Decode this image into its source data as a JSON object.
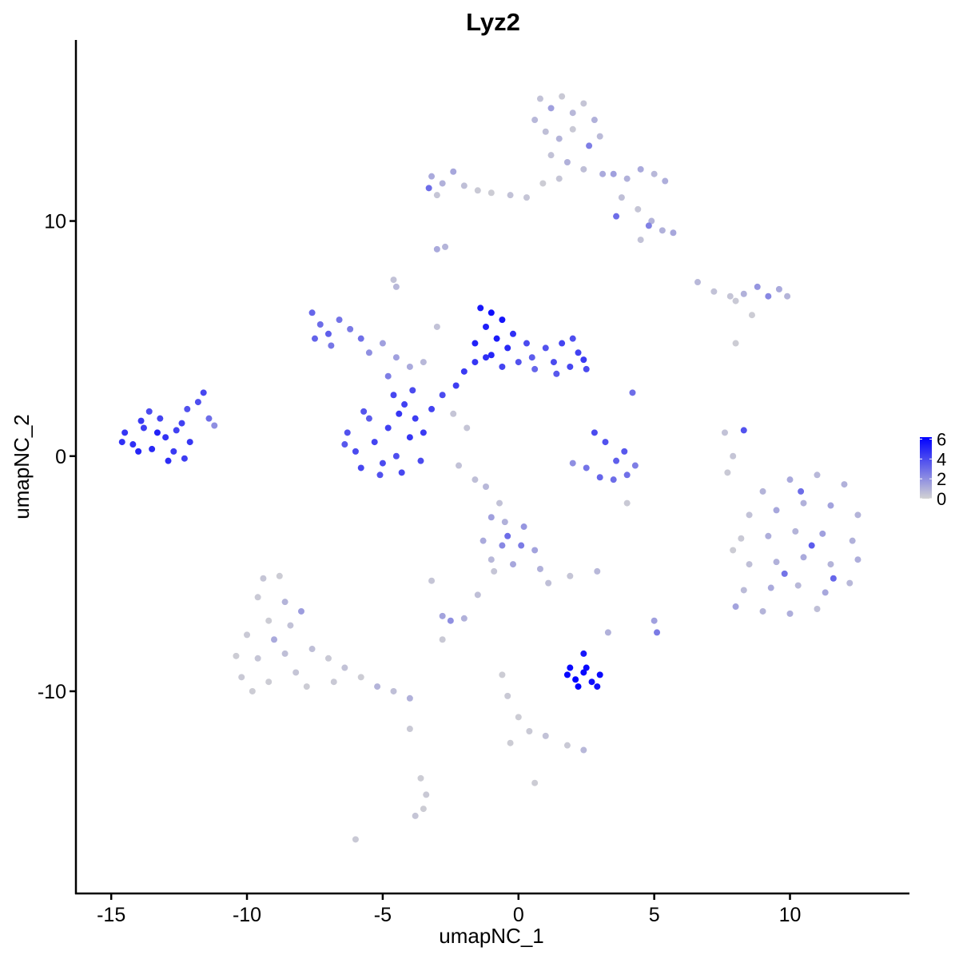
{
  "chart_data": {
    "type": "scatter",
    "title": "Lyz2",
    "xlabel": "umapNC_1",
    "ylabel": "umapNC_2",
    "xlim": [
      -16.3,
      14.4
    ],
    "ylim": [
      -18.6,
      17.7
    ],
    "x_ticks": [
      -15,
      -10,
      -5,
      0,
      5,
      10
    ],
    "y_ticks": [
      -10,
      0,
      10
    ],
    "grid": false,
    "legend": {
      "position": "right",
      "type": "colorbar",
      "ticks": [
        0,
        2,
        4,
        6
      ],
      "range": [
        0,
        6.2
      ],
      "low_color": "#d3d3d3",
      "high_color": "#0000ff"
    },
    "point_format": [
      "umapNC_1",
      "umapNC_2",
      "expression"
    ],
    "points": [
      [
        -14.5,
        1.0,
        4.6
      ],
      [
        -14.2,
        0.5,
        4.8
      ],
      [
        -13.8,
        1.2,
        4.4
      ],
      [
        -13.5,
        0.3,
        5.0
      ],
      [
        -13.2,
        1.6,
        4.2
      ],
      [
        -13.0,
        0.8,
        4.7
      ],
      [
        -12.7,
        0.2,
        4.5
      ],
      [
        -12.4,
        1.4,
        4.3
      ],
      [
        -12.1,
        0.6,
        4.6
      ],
      [
        -11.8,
        2.3,
        3.9
      ],
      [
        -11.6,
        2.7,
        4.1
      ],
      [
        -12.2,
        2.0,
        3.8
      ],
      [
        -13.6,
        1.9,
        4.0
      ],
      [
        -14.0,
        0.2,
        5.1
      ],
      [
        -12.9,
        -0.2,
        4.9
      ],
      [
        -12.3,
        -0.1,
        4.4
      ],
      [
        -11.2,
        1.3,
        2.0
      ],
      [
        -14.6,
        0.6,
        4.8
      ],
      [
        -13.3,
        1.0,
        5.2
      ],
      [
        -12.6,
        1.1,
        4.3
      ],
      [
        -11.4,
        1.6,
        3.0
      ],
      [
        -13.9,
        1.5,
        4.5
      ],
      [
        -6.3,
        1.0,
        3.8
      ],
      [
        -6.0,
        0.2,
        4.0
      ],
      [
        -5.8,
        -0.5,
        4.1
      ],
      [
        -5.5,
        1.6,
        3.5
      ],
      [
        -5.3,
        0.6,
        4.2
      ],
      [
        -5.0,
        -0.3,
        4.0
      ],
      [
        -4.8,
        1.2,
        4.3
      ],
      [
        -4.5,
        0.0,
        3.9
      ],
      [
        -4.3,
        -0.7,
        4.1
      ],
      [
        -4.0,
        0.8,
        4.6
      ],
      [
        -3.8,
        1.6,
        4.4
      ],
      [
        -3.6,
        -0.2,
        4.0
      ],
      [
        -3.5,
        1.0,
        4.5
      ],
      [
        -4.2,
        2.2,
        4.3
      ],
      [
        -4.6,
        2.6,
        4.1
      ],
      [
        -5.7,
        1.9,
        3.7
      ],
      [
        -6.4,
        0.5,
        3.6
      ],
      [
        -5.1,
        -0.8,
        3.8
      ],
      [
        -3.9,
        2.8,
        4.0
      ],
      [
        -4.4,
        1.8,
        4.6
      ],
      [
        -3.2,
        2.0,
        4.2
      ],
      [
        -2.8,
        2.6,
        4.0
      ],
      [
        -2.3,
        3.0,
        4.4
      ],
      [
        -2.0,
        3.6,
        4.5
      ],
      [
        -1.6,
        4.0,
        4.6
      ],
      [
        -1.2,
        4.2,
        4.8
      ],
      [
        -0.6,
        3.8,
        4.2
      ],
      [
        0.0,
        4.0,
        3.8
      ],
      [
        0.5,
        4.2,
        3.5
      ],
      [
        -4.5,
        4.2,
        1.5
      ],
      [
        -4.0,
        3.8,
        1.2
      ],
      [
        -3.5,
        4.0,
        0.8
      ],
      [
        -5.0,
        4.8,
        1.5
      ],
      [
        -4.8,
        3.4,
        2.5
      ],
      [
        -3.0,
        5.5,
        0.5
      ],
      [
        -1.4,
        6.3,
        5.5
      ],
      [
        -1.0,
        6.1,
        5.8
      ],
      [
        -0.6,
        5.8,
        5.6
      ],
      [
        -1.2,
        5.5,
        5.3
      ],
      [
        -0.8,
        5.0,
        5.4
      ],
      [
        -0.4,
        4.6,
        5.0
      ],
      [
        -1.6,
        4.8,
        5.2
      ],
      [
        -1.0,
        4.3,
        5.1
      ],
      [
        -0.2,
        5.2,
        4.8
      ],
      [
        0.3,
        4.8,
        4.0
      ],
      [
        1.0,
        4.6,
        3.8
      ],
      [
        1.3,
        4.0,
        4.0
      ],
      [
        1.6,
        4.8,
        4.2
      ],
      [
        1.9,
        3.8,
        4.1
      ],
      [
        2.2,
        4.4,
        4.3
      ],
      [
        2.5,
        3.7,
        4.0
      ],
      [
        1.4,
        3.5,
        3.6
      ],
      [
        2.0,
        5.0,
        3.9
      ],
      [
        2.4,
        4.1,
        4.5
      ],
      [
        0.6,
        3.7,
        3.2
      ],
      [
        -7.6,
        6.1,
        3.2
      ],
      [
        -7.3,
        5.6,
        3.0
      ],
      [
        -7.0,
        5.2,
        3.4
      ],
      [
        -6.6,
        5.8,
        2.8
      ],
      [
        -6.2,
        5.4,
        2.6
      ],
      [
        -5.8,
        5.0,
        2.9
      ],
      [
        -7.5,
        5.0,
        3.3
      ],
      [
        -6.9,
        4.7,
        2.7
      ],
      [
        -5.5,
        4.4,
        2.0
      ],
      [
        2.8,
        1.0,
        4.0
      ],
      [
        3.2,
        0.6,
        3.8
      ],
      [
        2.0,
        -0.3,
        2.0
      ],
      [
        2.5,
        -0.5,
        2.8
      ],
      [
        3.0,
        -0.9,
        3.2
      ],
      [
        3.5,
        -1.0,
        3.0
      ],
      [
        4.0,
        -0.8,
        2.9
      ],
      [
        4.3,
        -0.4,
        2.5
      ],
      [
        3.6,
        -0.2,
        3.4
      ],
      [
        3.9,
        0.2,
        3.6
      ],
      [
        0.8,
        15.2,
        0.5
      ],
      [
        1.2,
        14.8,
        1.5
      ],
      [
        1.6,
        15.3,
        0.3
      ],
      [
        2.0,
        14.6,
        0.8
      ],
      [
        2.4,
        15.0,
        0.4
      ],
      [
        2.8,
        14.3,
        1.0
      ],
      [
        1.0,
        13.8,
        0.6
      ],
      [
        1.5,
        13.5,
        0.9
      ],
      [
        2.0,
        13.9,
        0.3
      ],
      [
        2.6,
        13.2,
        2.5
      ],
      [
        3.0,
        13.6,
        0.7
      ],
      [
        1.2,
        12.8,
        0.5
      ],
      [
        1.8,
        12.5,
        1.0
      ],
      [
        2.4,
        12.2,
        0.6
      ],
      [
        3.1,
        12.0,
        1.2
      ],
      [
        0.9,
        11.6,
        0.2
      ],
      [
        1.5,
        11.8,
        0.4
      ],
      [
        0.6,
        14.3,
        0.8
      ],
      [
        3.5,
        12.0,
        1.5
      ],
      [
        4.0,
        11.8,
        1.0
      ],
      [
        4.5,
        12.2,
        1.2
      ],
      [
        5.0,
        12.0,
        0.8
      ],
      [
        5.4,
        11.7,
        1.1
      ],
      [
        3.8,
        11.0,
        0.6
      ],
      [
        4.4,
        10.5,
        0.4
      ],
      [
        4.9,
        10.0,
        0.9
      ],
      [
        5.3,
        9.6,
        1.0
      ],
      [
        5.7,
        9.5,
        1.3
      ],
      [
        4.5,
        9.2,
        0.5
      ],
      [
        3.6,
        10.2,
        3.0
      ],
      [
        4.8,
        9.8,
        2.4
      ],
      [
        -3.2,
        11.9,
        1.2
      ],
      [
        -2.8,
        11.6,
        1.0
      ],
      [
        -2.4,
        12.1,
        1.3
      ],
      [
        -2.0,
        11.5,
        0.6
      ],
      [
        -1.5,
        11.3,
        0.3
      ],
      [
        -1.0,
        11.2,
        0.2
      ],
      [
        -0.3,
        11.1,
        0.5
      ],
      [
        0.3,
        11.0,
        0.4
      ],
      [
        -3.0,
        11.1,
        0.4
      ],
      [
        -3.3,
        11.4,
        3.0
      ],
      [
        6.6,
        7.4,
        0.8
      ],
      [
        7.2,
        7.0,
        0.5
      ],
      [
        7.8,
        6.8,
        0.4
      ],
      [
        8.3,
        6.9,
        1.0
      ],
      [
        8.8,
        7.2,
        1.8
      ],
      [
        9.2,
        6.8,
        2.2
      ],
      [
        9.6,
        7.1,
        1.2
      ],
      [
        9.9,
        6.8,
        0.9
      ],
      [
        8.0,
        6.6,
        0.3
      ],
      [
        8.6,
        6.0,
        0.2
      ],
      [
        9.0,
        -1.5,
        0.9
      ],
      [
        10.0,
        -1.0,
        1.2
      ],
      [
        11.0,
        -0.8,
        0.8
      ],
      [
        12.0,
        -1.2,
        1.0
      ],
      [
        8.5,
        -2.5,
        0.5
      ],
      [
        9.5,
        -2.3,
        1.3
      ],
      [
        10.5,
        -2.0,
        1.0
      ],
      [
        11.5,
        -2.1,
        1.4
      ],
      [
        12.5,
        -2.5,
        0.9
      ],
      [
        8.2,
        -3.5,
        0.3
      ],
      [
        9.2,
        -3.4,
        1.1
      ],
      [
        10.2,
        -3.2,
        0.9
      ],
      [
        11.2,
        -3.3,
        1.5
      ],
      [
        12.3,
        -3.6,
        1.0
      ],
      [
        8.5,
        -4.6,
        0.6
      ],
      [
        9.5,
        -4.5,
        1.0
      ],
      [
        10.5,
        -4.3,
        1.2
      ],
      [
        11.5,
        -4.6,
        0.9
      ],
      [
        12.5,
        -4.4,
        1.1
      ],
      [
        8.3,
        -5.7,
        0.7
      ],
      [
        9.3,
        -5.6,
        1.2
      ],
      [
        10.3,
        -5.5,
        0.8
      ],
      [
        11.3,
        -5.8,
        1.3
      ],
      [
        12.2,
        -5.4,
        0.8
      ],
      [
        9.0,
        -6.6,
        0.9
      ],
      [
        10.0,
        -6.7,
        1.1
      ],
      [
        11.0,
        -6.5,
        0.6
      ],
      [
        8.0,
        -6.4,
        1.4
      ],
      [
        7.9,
        -4.0,
        0.2
      ],
      [
        10.8,
        -3.8,
        3.5
      ],
      [
        11.6,
        -5.2,
        3.2
      ],
      [
        10.4,
        -1.5,
        3.0
      ],
      [
        9.8,
        -5.0,
        2.8
      ],
      [
        -9.4,
        -5.2,
        0.4
      ],
      [
        -8.8,
        -5.1,
        0.2
      ],
      [
        -9.6,
        -6.0,
        0.3
      ],
      [
        -8.6,
        -6.2,
        0.9
      ],
      [
        -9.2,
        -7.0,
        0.2
      ],
      [
        -8.4,
        -7.2,
        0.5
      ],
      [
        -10.0,
        -7.6,
        0.3
      ],
      [
        -9.0,
        -7.8,
        1.2
      ],
      [
        -10.4,
        -8.5,
        0.2
      ],
      [
        -9.6,
        -8.6,
        0.4
      ],
      [
        -8.6,
        -8.4,
        0.6
      ],
      [
        -10.2,
        -9.4,
        0.3
      ],
      [
        -9.2,
        -9.6,
        0.2
      ],
      [
        -8.2,
        -9.2,
        0.4
      ],
      [
        -7.6,
        -8.2,
        0.6
      ],
      [
        -7.0,
        -8.6,
        0.3
      ],
      [
        -6.4,
        -9.0,
        0.5
      ],
      [
        -5.8,
        -9.4,
        0.2
      ],
      [
        -5.2,
        -9.8,
        0.9
      ],
      [
        -4.6,
        -10.0,
        0.6
      ],
      [
        -4.0,
        -10.3,
        1.0
      ],
      [
        -7.8,
        -9.8,
        0.2
      ],
      [
        -6.8,
        -9.6,
        0.3
      ],
      [
        -8.0,
        -6.6,
        1.6
      ],
      [
        -9.8,
        -10.0,
        0.2
      ],
      [
        -1.0,
        -2.6,
        1.5
      ],
      [
        -0.5,
        -2.8,
        1.0
      ],
      [
        0.2,
        -3.0,
        1.8
      ],
      [
        -1.3,
        -3.6,
        1.2
      ],
      [
        -0.6,
        -3.8,
        2.2
      ],
      [
        0.1,
        -3.8,
        2.6
      ],
      [
        0.6,
        -4.0,
        1.4
      ],
      [
        -1.0,
        -4.4,
        0.8
      ],
      [
        -0.2,
        -4.6,
        1.3
      ],
      [
        0.8,
        -4.8,
        1.0
      ],
      [
        1.1,
        -5.4,
        0.6
      ],
      [
        -0.4,
        -3.4,
        3.0
      ],
      [
        1.8,
        -9.3,
        6.0
      ],
      [
        2.1,
        -9.5,
        6.2
      ],
      [
        2.4,
        -9.2,
        6.0
      ],
      [
        2.7,
        -9.6,
        5.8
      ],
      [
        3.0,
        -9.3,
        5.9
      ],
      [
        2.2,
        -9.8,
        6.1
      ],
      [
        2.5,
        -9.0,
        6.0
      ],
      [
        2.4,
        -8.4,
        5.5
      ],
      [
        1.9,
        -9.0,
        5.9
      ],
      [
        2.9,
        -9.8,
        5.7
      ],
      [
        -3.6,
        -13.7,
        0.2
      ],
      [
        -3.4,
        -14.4,
        0.3
      ],
      [
        -3.5,
        -15.0,
        0.2
      ],
      [
        -3.8,
        -15.3,
        0.4
      ],
      [
        -6.0,
        -16.3,
        0.3
      ],
      [
        -2.8,
        -6.8,
        1.4
      ],
      [
        -2.5,
        -7.0,
        2.0
      ],
      [
        -2.0,
        -6.9,
        1.0
      ],
      [
        -1.5,
        -5.9,
        0.6
      ],
      [
        -0.9,
        -4.9,
        0.4
      ],
      [
        -0.6,
        -9.3,
        0.2
      ],
      [
        -0.4,
        -10.2,
        0.3
      ],
      [
        0.0,
        -11.1,
        0.2
      ],
      [
        0.4,
        -11.7,
        0.3
      ],
      [
        1.0,
        -11.9,
        0.5
      ],
      [
        1.8,
        -12.3,
        0.3
      ],
      [
        2.4,
        -12.5,
        0.8
      ],
      [
        -0.3,
        -12.2,
        0.2
      ],
      [
        0.6,
        -13.9,
        0.2
      ],
      [
        -4.0,
        -11.6,
        0.3
      ],
      [
        -3.2,
        -5.3,
        0.4
      ],
      [
        -2.8,
        -7.8,
        0.3
      ],
      [
        7.6,
        1.0,
        0.5
      ],
      [
        8.3,
        1.1,
        3.8
      ],
      [
        7.9,
        0.0,
        0.4
      ],
      [
        7.7,
        -0.7,
        0.3
      ],
      [
        -3.0,
        8.8,
        1.2
      ],
      [
        -2.7,
        8.9,
        0.9
      ],
      [
        -4.6,
        7.5,
        0.5
      ],
      [
        -4.5,
        7.2,
        0.8
      ],
      [
        2.9,
        -4.9,
        0.8
      ],
      [
        5.0,
        -7.0,
        1.5
      ],
      [
        5.1,
        -7.5,
        2.6
      ],
      [
        3.3,
        -7.5,
        1.0
      ],
      [
        1.9,
        -5.1,
        0.4
      ],
      [
        4.0,
        -2.0,
        0.3
      ],
      [
        -1.2,
        -1.3,
        0.8
      ],
      [
        -1.6,
        -1.0,
        0.6
      ],
      [
        -2.2,
        -0.4,
        0.5
      ],
      [
        -0.7,
        -2.0,
        0.5
      ],
      [
        4.2,
        2.7,
        3.0
      ],
      [
        8.0,
        4.8,
        0.2
      ],
      [
        -2.4,
        1.8,
        0.4
      ],
      [
        -1.9,
        1.2,
        0.4
      ]
    ]
  }
}
